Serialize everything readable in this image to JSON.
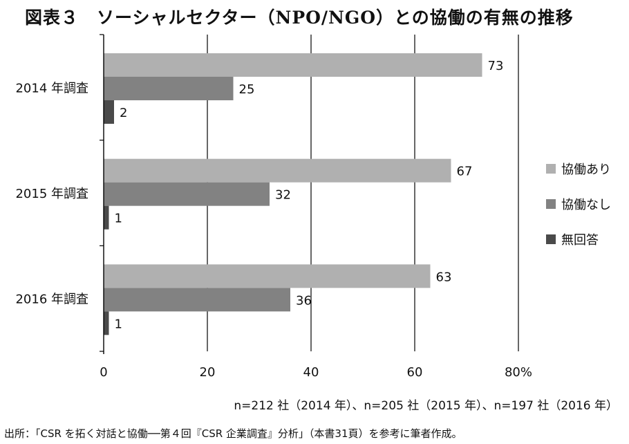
{
  "title": "図表３　ソーシャルセクター（NPO/NGO）との協働の有無の推移",
  "notes": {
    "sample": "n=212 社（2014 年）、n=205 社（2015 年）、n=197 社（2016 年）",
    "source": "出所：「CSR を拓く対話と協働──第４回『CSR 企業調査』分析」（本書31頁）を参考に筆者作成。"
  },
  "chart_data": {
    "type": "bar",
    "orientation": "horizontal",
    "categories": [
      "2014 年調査",
      "2015 年調査",
      "2016 年調査"
    ],
    "series": [
      {
        "name": "協働あり",
        "color": "#b0b0b0",
        "values": [
          73,
          67,
          63
        ]
      },
      {
        "name": "協働なし",
        "color": "#828282",
        "values": [
          25,
          32,
          36
        ]
      },
      {
        "name": "無回答",
        "color": "#4a4a4a",
        "values": [
          2,
          1,
          1
        ]
      }
    ],
    "xlim": [
      0,
      80
    ],
    "xticks": [
      0,
      20,
      40,
      60,
      80
    ],
    "xtick_labels": [
      "0",
      "20",
      "40",
      "60",
      "80%"
    ],
    "grid": true,
    "legend": "right"
  }
}
